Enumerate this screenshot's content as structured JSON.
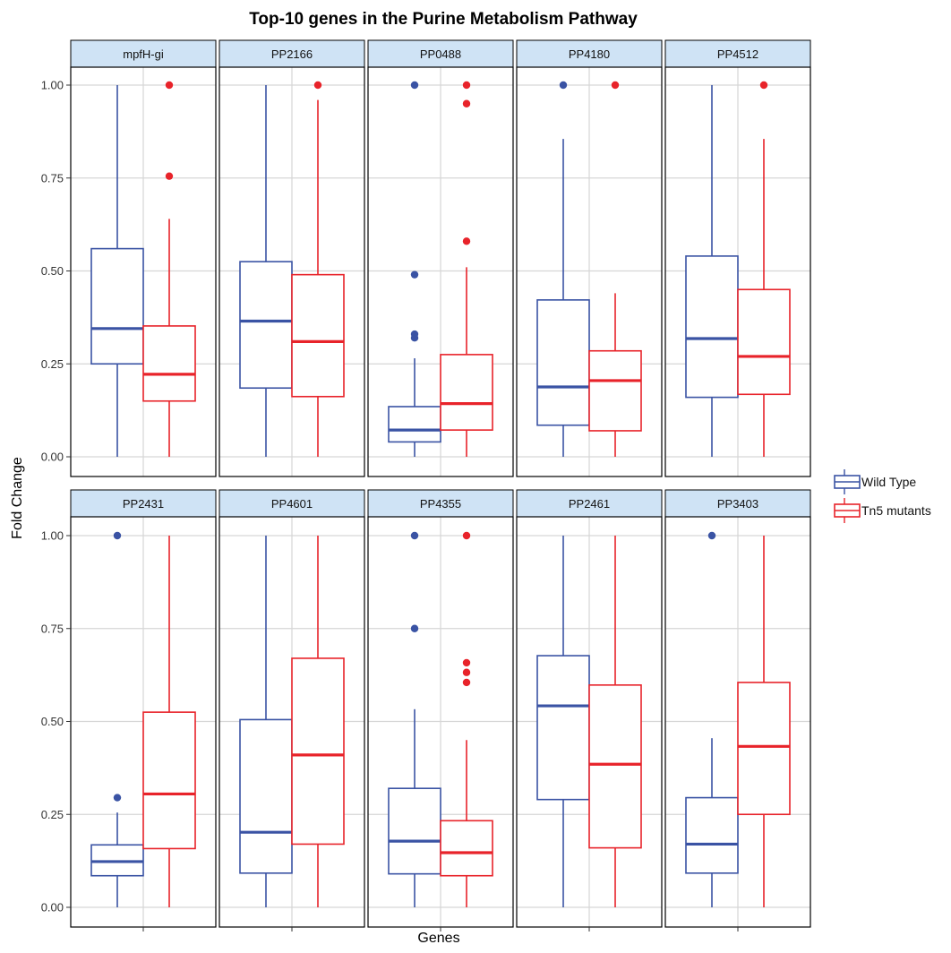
{
  "chart_data": {
    "type": "box",
    "title": "Top-10 genes in the Purine Metabolism Pathway",
    "xlabel": "Genes",
    "ylabel": "Fold Change",
    "ylim": [
      -0.05,
      1.05
    ],
    "yticks": [
      0.0,
      0.25,
      0.5,
      0.75,
      1.0
    ],
    "ytick_labels": [
      "0.00",
      "0.25",
      "0.50",
      "0.75",
      "1.00"
    ],
    "grid": true,
    "facet_layout": "2 rows x 5 columns",
    "legend_position": "right",
    "series": [
      {
        "name": "Wild Type",
        "color": "#3a53a4"
      },
      {
        "name": "Tn5 mutants",
        "color": "#e8232a"
      }
    ],
    "panels": [
      {
        "gene": "mpfH-gi",
        "boxes": [
          {
            "series": "Wild Type",
            "min": 0.0,
            "q1": 0.25,
            "median": 0.345,
            "q3": 0.56,
            "max": 1.0,
            "outliers": []
          },
          {
            "series": "Tn5 mutants",
            "min": 0.0,
            "q1": 0.15,
            "median": 0.222,
            "q3": 0.352,
            "max": 0.64,
            "outliers": [
              0.755,
              1.0
            ]
          }
        ]
      },
      {
        "gene": "PP2166",
        "boxes": [
          {
            "series": "Wild Type",
            "min": 0.0,
            "q1": 0.185,
            "median": 0.365,
            "q3": 0.525,
            "max": 1.0,
            "outliers": []
          },
          {
            "series": "Tn5 mutants",
            "min": 0.0,
            "q1": 0.162,
            "median": 0.31,
            "q3": 0.49,
            "max": 0.96,
            "outliers": [
              1.0
            ]
          }
        ]
      },
      {
        "gene": "PP0488",
        "boxes": [
          {
            "series": "Wild Type",
            "min": 0.0,
            "q1": 0.04,
            "median": 0.072,
            "q3": 0.135,
            "max": 0.265,
            "outliers": [
              0.32,
              0.33,
              0.49,
              1.0
            ]
          },
          {
            "series": "Tn5 mutants",
            "min": 0.0,
            "q1": 0.072,
            "median": 0.143,
            "q3": 0.275,
            "max": 0.51,
            "outliers": [
              0.58,
              0.95,
              1.0
            ]
          }
        ]
      },
      {
        "gene": "PP4180",
        "boxes": [
          {
            "series": "Wild Type",
            "min": 0.0,
            "q1": 0.085,
            "median": 0.188,
            "q3": 0.422,
            "max": 0.855,
            "outliers": [
              1.0
            ]
          },
          {
            "series": "Tn5 mutants",
            "min": 0.0,
            "q1": 0.07,
            "median": 0.205,
            "q3": 0.285,
            "max": 0.44,
            "outliers": [
              1.0
            ]
          }
        ]
      },
      {
        "gene": "PP4512",
        "boxes": [
          {
            "series": "Wild Type",
            "min": 0.0,
            "q1": 0.16,
            "median": 0.318,
            "q3": 0.54,
            "max": 1.0,
            "outliers": []
          },
          {
            "series": "Tn5 mutants",
            "min": 0.0,
            "q1": 0.168,
            "median": 0.27,
            "q3": 0.45,
            "max": 0.855,
            "outliers": [
              1.0
            ]
          }
        ]
      },
      {
        "gene": "PP2431",
        "boxes": [
          {
            "series": "Wild Type",
            "min": 0.0,
            "q1": 0.085,
            "median": 0.123,
            "q3": 0.168,
            "max": 0.255,
            "outliers": [
              0.295,
              1.0
            ]
          },
          {
            "series": "Tn5 mutants",
            "min": 0.0,
            "q1": 0.158,
            "median": 0.305,
            "q3": 0.525,
            "max": 1.0,
            "outliers": []
          }
        ]
      },
      {
        "gene": "PP4601",
        "boxes": [
          {
            "series": "Wild Type",
            "min": 0.0,
            "q1": 0.092,
            "median": 0.202,
            "q3": 0.505,
            "max": 1.0,
            "outliers": []
          },
          {
            "series": "Tn5 mutants",
            "min": 0.0,
            "q1": 0.17,
            "median": 0.41,
            "q3": 0.67,
            "max": 1.0,
            "outliers": []
          }
        ]
      },
      {
        "gene": "PP4355",
        "boxes": [
          {
            "series": "Wild Type",
            "min": 0.0,
            "q1": 0.09,
            "median": 0.178,
            "q3": 0.32,
            "max": 0.533,
            "outliers": [
              0.75,
              1.0
            ]
          },
          {
            "series": "Tn5 mutants",
            "min": 0.0,
            "q1": 0.085,
            "median": 0.147,
            "q3": 0.233,
            "max": 0.45,
            "outliers": [
              0.605,
              0.632,
              0.658,
              1.0
            ]
          }
        ]
      },
      {
        "gene": "PP2461",
        "boxes": [
          {
            "series": "Wild Type",
            "min": 0.0,
            "q1": 0.29,
            "median": 0.542,
            "q3": 0.677,
            "max": 1.0,
            "outliers": []
          },
          {
            "series": "Tn5 mutants",
            "min": 0.0,
            "q1": 0.16,
            "median": 0.385,
            "q3": 0.598,
            "max": 1.0,
            "outliers": []
          }
        ]
      },
      {
        "gene": "PP3403",
        "boxes": [
          {
            "series": "Wild Type",
            "min": 0.0,
            "q1": 0.092,
            "median": 0.17,
            "q3": 0.295,
            "max": 0.455,
            "outliers": [
              1.0
            ]
          },
          {
            "series": "Tn5 mutants",
            "min": 0.0,
            "q1": 0.25,
            "median": 0.433,
            "q3": 0.605,
            "max": 1.0,
            "outliers": []
          }
        ]
      }
    ]
  }
}
